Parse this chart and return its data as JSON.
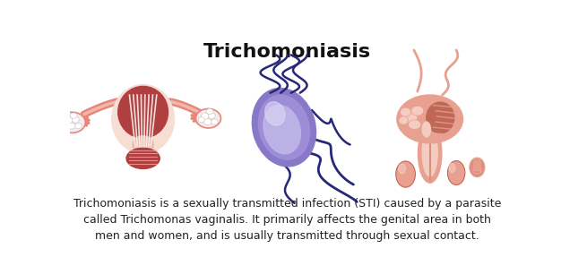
{
  "title": "Trichomoniasis",
  "title_fontsize": 16,
  "title_fontweight": "bold",
  "title_color": "#111111",
  "background_color": "#ffffff",
  "description_text": "Trichomoniasis is a sexually transmitted infection (STI) caused by a parasite\ncalled Trichomonas vaginalis. It primarily affects the genital area in both\nmen and women, and is usually transmitted through sexual contact.",
  "description_fontsize": 9.0,
  "description_color": "#222222",
  "uterus_outer": "#e8857a",
  "uterus_dark": "#b04040",
  "uterus_pink": "#f0b8a8",
  "uterus_light": "#f8ddd5",
  "uterus_white": "#f8f0ee",
  "ovary_white": "#f0eeee",
  "parasite_outer": "#8878c8",
  "parasite_mid": "#a090d8",
  "parasite_light": "#c0b8e8",
  "parasite_tail": "#282878",
  "male_outer": "#e8a090",
  "male_dark": "#c06858",
  "male_mid": "#d89080",
  "male_light": "#f5ccc0"
}
